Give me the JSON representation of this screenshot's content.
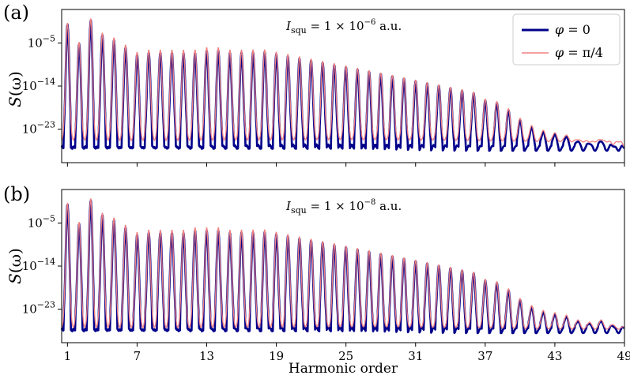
{
  "chart_data": [
    {
      "type": "line",
      "panel_label": "(a)",
      "annotation": "I_squ = 1 × 10^-6 a.u.",
      "annotation_parts": {
        "main": "I",
        "sub": "squ",
        "rest": " = 1 × 10",
        "exp": "−6",
        "unit": " a.u."
      },
      "ylabel": "S(ω)",
      "ylabel_parts": {
        "s": "S",
        "rest": "(ω)"
      },
      "yscale": "log",
      "ylim": [
        1e-30,
        100.0
      ],
      "yticks": [
        {
          "value": 1e-05,
          "base": "10",
          "exp": "−5"
        },
        {
          "value": 1e-14,
          "base": "10",
          "exp": "−14"
        },
        {
          "value": 1e-23,
          "base": "10",
          "exp": "−23"
        }
      ],
      "xlim": [
        0.5,
        49
      ],
      "legend": {
        "position": "top-right",
        "entries": [
          {
            "label_main": "φ",
            "label_rest": " = 0",
            "color": "#00008b",
            "series": "phi_0"
          },
          {
            "label_main": "φ",
            "label_rest": " = π/4",
            "color": "#f08080",
            "series": "phi_pi4"
          }
        ]
      },
      "peak_heights_log10": [
        -1,
        -5,
        0,
        -3,
        -4,
        -5.5,
        -7,
        -6.5,
        -6.5,
        -6.5,
        -6.5,
        -6.5,
        -6,
        -6,
        -6.5,
        -6.5,
        -6.5,
        -6.5,
        -7,
        -7.5,
        -8,
        -8.5,
        -9,
        -9.5,
        -10,
        -10.5,
        -11,
        -11.5,
        -12,
        -12.5,
        -13,
        -13.5,
        -14,
        -14.5,
        -15,
        -15.5,
        -17,
        -17.5,
        -19,
        -21,
        -22.5,
        -23.5,
        -24,
        -24.5,
        -25.5,
        -26,
        -25.5,
        -26.5,
        -27
      ],
      "series": [
        {
          "name": "φ = 0",
          "key": "phi_0",
          "color": "#00008b",
          "baseline_log10": -27,
          "valley_log10": -28.5
        },
        {
          "name": "φ = π/4",
          "key": "phi_pi4",
          "color": "#f08080",
          "baseline_log10": -25.5,
          "valley_log10": -25.5
        }
      ]
    },
    {
      "type": "line",
      "panel_label": "(b)",
      "annotation": "I_squ = 1 × 10^-8 a.u.",
      "annotation_parts": {
        "main": "I",
        "sub": "squ",
        "rest": " = 1 × 10",
        "exp": "−8",
        "unit": " a.u."
      },
      "ylabel": "S(ω)",
      "ylabel_parts": {
        "s": "S",
        "rest": "(ω)"
      },
      "yscale": "log",
      "ylim": [
        1e-30,
        100.0
      ],
      "yticks": [
        {
          "value": 1e-05,
          "base": "10",
          "exp": "−5"
        },
        {
          "value": 1e-14,
          "base": "10",
          "exp": "−14"
        },
        {
          "value": 1e-23,
          "base": "10",
          "exp": "−23"
        }
      ],
      "xlim": [
        0.5,
        49
      ],
      "xlabel": "Harmonic order",
      "xticks": [
        1,
        7,
        13,
        19,
        25,
        31,
        37,
        43,
        49
      ],
      "peak_heights_log10": [
        -1,
        -5,
        0,
        -3,
        -4,
        -5.5,
        -7,
        -6.5,
        -6.5,
        -6.5,
        -6.5,
        -6,
        -6,
        -6,
        -6.5,
        -6.5,
        -6.5,
        -6.5,
        -7,
        -7.5,
        -8,
        -8.5,
        -9,
        -9.5,
        -10,
        -10.5,
        -11,
        -11.5,
        -12,
        -12.5,
        -13,
        -13.5,
        -14,
        -14.5,
        -15,
        -15.5,
        -17,
        -17.5,
        -19,
        -21,
        -22.5,
        -23.5,
        -24,
        -24.5,
        -25.5,
        -26,
        -25.5,
        -26.5,
        -27
      ],
      "series": [
        {
          "name": "φ = 0",
          "key": "phi_0",
          "color": "#00008b",
          "baseline_log10": -27.5,
          "valley_log10": -28.5
        },
        {
          "name": "φ = π/4",
          "key": "phi_pi4",
          "color": "#f08080",
          "baseline_log10": -27,
          "valley_log10": -27
        }
      ]
    }
  ]
}
